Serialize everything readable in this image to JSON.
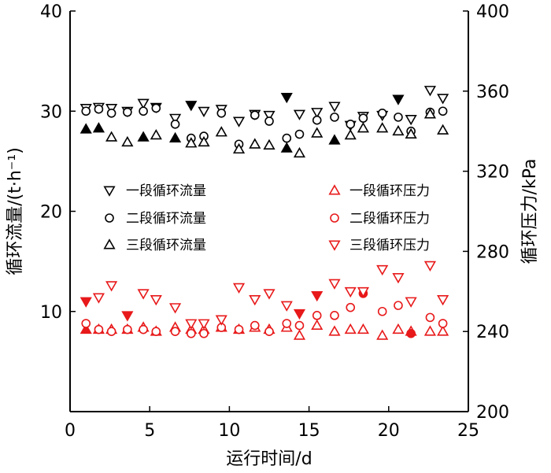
{
  "chart_data": {
    "type": "scatter",
    "x_axis": {
      "label": "运行时间/d",
      "range": [
        0,
        25
      ],
      "ticks": [
        0,
        5,
        10,
        15,
        20,
        25
      ]
    },
    "y_axis_left": {
      "label": "循环流量/(t·h⁻¹)",
      "range": [
        0,
        40
      ],
      "ticks": [
        10,
        20,
        30,
        40
      ]
    },
    "y_axis_right": {
      "label": "循环压力/kPa",
      "range": [
        200,
        400
      ],
      "ticks": [
        200,
        240,
        280,
        320,
        360,
        400
      ]
    },
    "grid": false,
    "legend_position": "center",
    "x": [
      1,
      1.8,
      2.6,
      3.6,
      4.6,
      5.4,
      6.6,
      7.6,
      8.4,
      9.5,
      10.6,
      11.6,
      12.5,
      13.6,
      14.4,
      15.5,
      16.6,
      17.6,
      18.4,
      19.6,
      20.6,
      21.4,
      22.6,
      23.4
    ],
    "series": [
      {
        "name": "一段循环流量",
        "axis": "left",
        "marker": "triangle-down",
        "color": "#000000",
        "values": [
          30.3,
          30.4,
          30.3,
          30.0,
          30.8,
          30.4,
          29.3,
          30.6,
          30.0,
          30.2,
          29.0,
          29.7,
          29.6,
          31.4,
          29.7,
          29.9,
          30.5,
          28.6,
          29.5,
          29.6,
          31.2,
          29.2,
          32.1,
          31.3
        ],
        "filled": [
          false,
          false,
          false,
          false,
          false,
          true,
          false,
          true,
          false,
          false,
          false,
          false,
          false,
          true,
          false,
          false,
          false,
          false,
          false,
          false,
          true,
          false,
          false,
          false
        ]
      },
      {
        "name": "二段循环流量",
        "axis": "left",
        "marker": "circle",
        "color": "#000000",
        "values": [
          30.0,
          30.2,
          29.8,
          29.9,
          30.0,
          30.3,
          28.7,
          27.3,
          27.5,
          29.8,
          26.7,
          29.6,
          29.0,
          27.3,
          27.7,
          29.1,
          29.4,
          28.7,
          29.3,
          29.8,
          29.4,
          28.0,
          29.9,
          30.0
        ],
        "filled": [
          false,
          false,
          false,
          false,
          false,
          false,
          false,
          false,
          false,
          false,
          false,
          false,
          false,
          false,
          false,
          false,
          false,
          false,
          false,
          false,
          false,
          false,
          false,
          false
        ]
      },
      {
        "name": "三段循环流量",
        "axis": "left",
        "marker": "triangle-up",
        "color": "#000000",
        "values": [
          28.2,
          28.3,
          27.4,
          26.9,
          27.4,
          27.6,
          27.3,
          26.8,
          26.9,
          27.9,
          26.2,
          26.7,
          26.6,
          26.3,
          25.8,
          27.8,
          27.1,
          27.6,
          28.3,
          28.3,
          28.0,
          27.7,
          29.7,
          28.1
        ],
        "filled": [
          true,
          true,
          false,
          false,
          true,
          false,
          true,
          false,
          false,
          false,
          false,
          false,
          false,
          true,
          false,
          false,
          true,
          false,
          false,
          false,
          false,
          false,
          false,
          false
        ]
      },
      {
        "name": "一段循环压力",
        "axis": "right",
        "marker": "triangle-up",
        "color": "#e8191a",
        "values": [
          241,
          241,
          241,
          241,
          242,
          240,
          242,
          241,
          241,
          242,
          241,
          242,
          241,
          242,
          238,
          243,
          240,
          241,
          241,
          238,
          241,
          240,
          240,
          240
        ],
        "filled": [
          true,
          false,
          false,
          false,
          false,
          false,
          false,
          false,
          false,
          false,
          false,
          false,
          false,
          false,
          false,
          false,
          false,
          false,
          false,
          false,
          false,
          false,
          false,
          false
        ]
      },
      {
        "name": "二段循环压力",
        "axis": "right",
        "marker": "circle",
        "color": "#e8191a",
        "values": [
          244,
          241,
          240,
          241,
          241,
          240,
          240,
          239,
          239,
          242,
          241,
          243,
          240,
          244,
          243,
          248,
          248,
          252,
          259,
          250,
          253,
          239,
          247,
          244
        ],
        "filled": [
          false,
          false,
          false,
          false,
          false,
          false,
          false,
          false,
          false,
          false,
          false,
          false,
          false,
          false,
          false,
          false,
          false,
          false,
          true,
          false,
          false,
          true,
          false,
          false
        ]
      },
      {
        "name": "三段循环压力",
        "axis": "right",
        "marker": "triangle-down",
        "color": "#e8191a",
        "values": [
          255,
          257,
          263,
          248,
          259,
          256,
          252,
          244,
          244,
          246,
          262,
          256,
          259,
          253,
          249,
          258,
          264,
          260,
          260,
          271,
          267,
          255,
          273,
          256
        ],
        "filled": [
          true,
          false,
          false,
          true,
          false,
          false,
          false,
          false,
          false,
          false,
          false,
          false,
          false,
          false,
          true,
          true,
          false,
          false,
          false,
          false,
          false,
          false,
          false,
          false
        ]
      }
    ]
  }
}
